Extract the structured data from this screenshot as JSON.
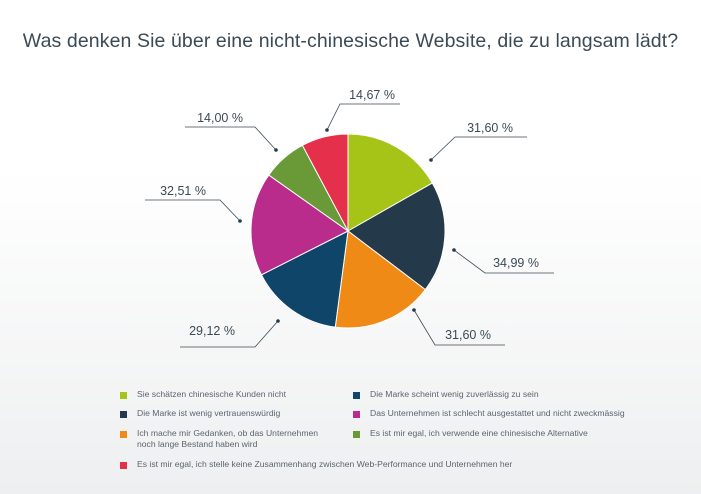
{
  "title": "Was denken Sie über eine nicht-chinesische Website, die zu langsam lädt?",
  "chart_data": {
    "type": "pie",
    "title": "Was denken Sie über eine nicht-chinesische Website, die zu langsam lädt?",
    "slices": [
      {
        "label": "Sie schätzen chinesische Kunden nicht",
        "value": 31.6,
        "value_label": "31,60 %",
        "color": "#a6c317"
      },
      {
        "label": "Die Marke ist wenig vertrauenswürdig",
        "value": 34.99,
        "value_label": "34,99 %",
        "color": "#24394a"
      },
      {
        "label": "Ich mache mir Gedanken, ob das Unternehmen\nnoch lange Bestand haben wird",
        "value": 31.6,
        "value_label": "31,60 %",
        "color": "#f08a16"
      },
      {
        "label": "Die Marke scheint wenig zuverlässig zu sein",
        "value": 29.12,
        "value_label": "29,12 %",
        "color": "#0f4568"
      },
      {
        "label": "Das Unternehmen ist schlecht ausgestattet und nicht zweckmässig",
        "value": 32.51,
        "value_label": "32,51 %",
        "color": "#b92c8b"
      },
      {
        "label": "Es ist mir egal, ich verwende eine chinesische Alternative",
        "value": 14.0,
        "value_label": "14,00 %",
        "color": "#6a9a38"
      },
      {
        "label": "Es ist mir egal, ich stelle keine Zusammenhang zwischen Web-Performance und Unternehmen her",
        "value": 14.67,
        "value_label": "14,67 %",
        "color": "#e4304b"
      }
    ],
    "legend_position": "bottom"
  }
}
